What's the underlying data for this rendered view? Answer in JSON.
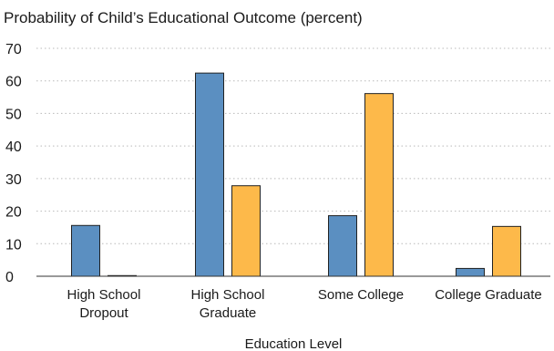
{
  "chart_data": {
    "type": "bar",
    "title": "Probability of Child’s Educational Outcome (percent)",
    "xlabel": "Education Level",
    "ylabel": "",
    "ylim": [
      0,
      70
    ],
    "yticks": [
      0,
      10,
      20,
      30,
      40,
      50,
      60,
      70
    ],
    "grid": true,
    "categories": [
      [
        "High School",
        "Dropout"
      ],
      [
        "High School",
        "Graduate"
      ],
      [
        "Some College"
      ],
      [
        "College Graduate"
      ]
    ],
    "series": [
      {
        "values": [
          15.6,
          62.4,
          18.6,
          2.4
        ],
        "color": "#5b8fc1"
      },
      {
        "values": [
          0.2,
          27.8,
          56.1,
          15.3
        ],
        "color": "#fdb94a"
      }
    ]
  }
}
